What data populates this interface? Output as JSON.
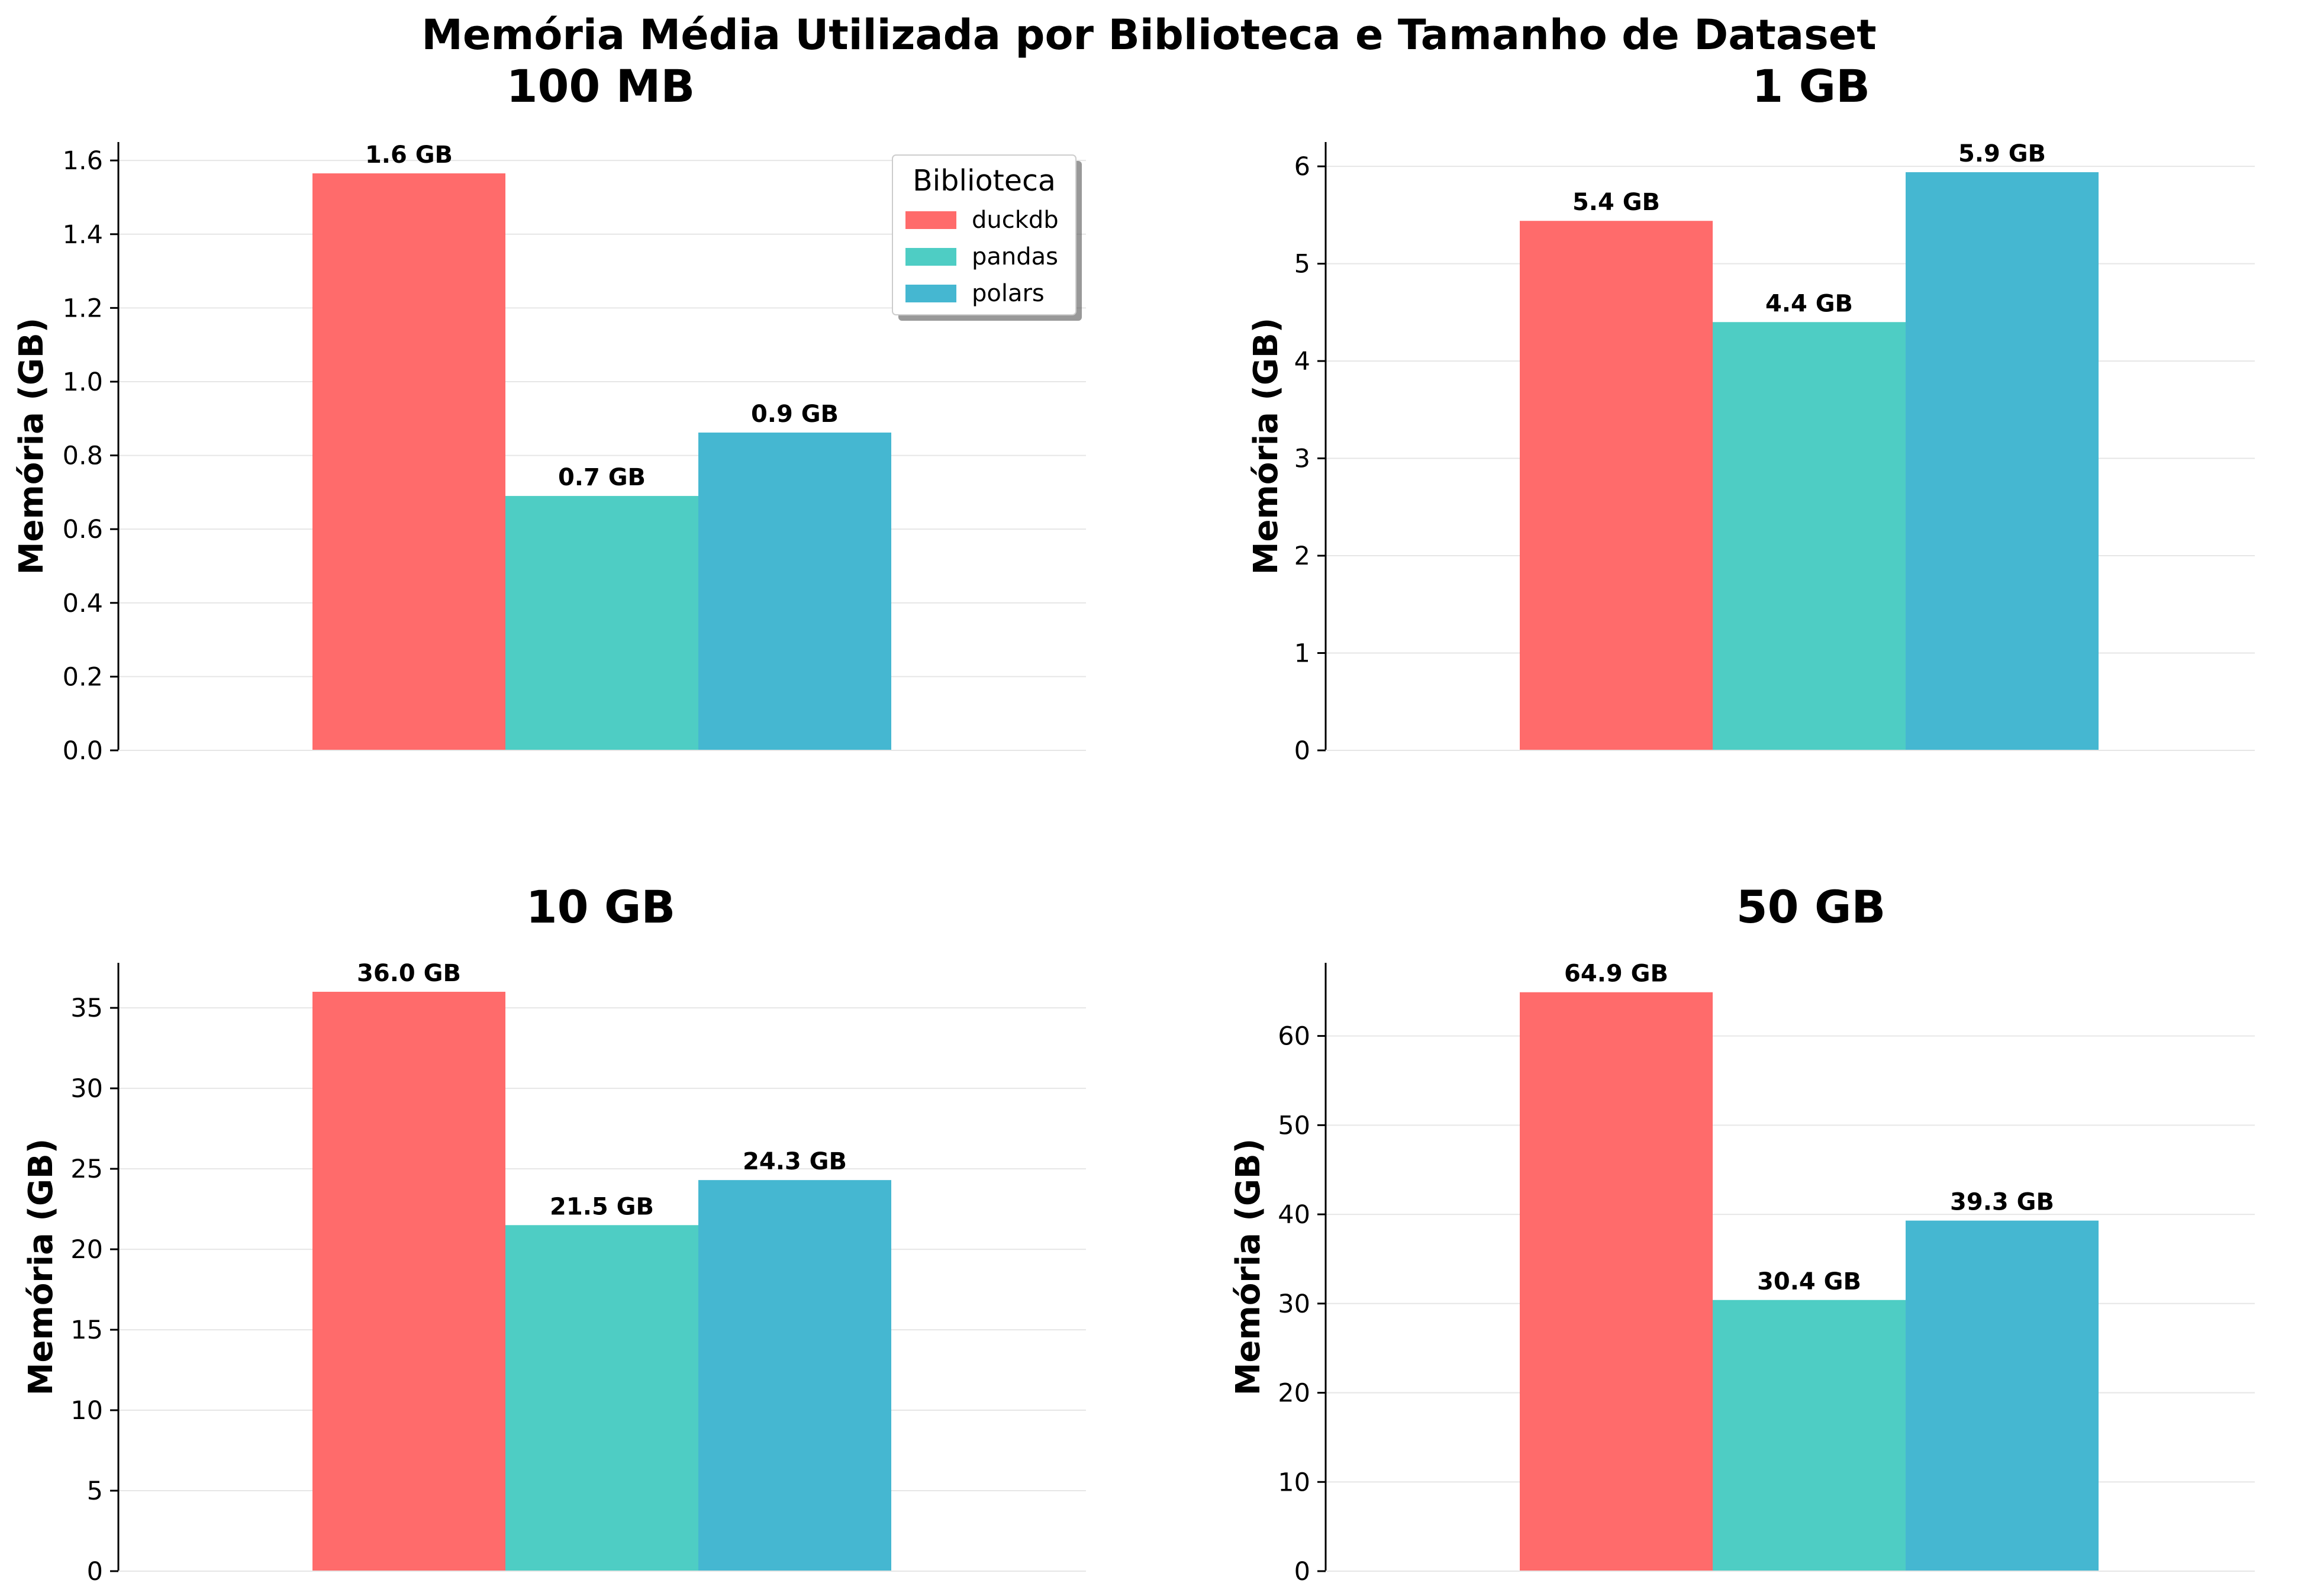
{
  "title": "Memória Média Utilizada por Biblioteca e Tamanho de Dataset",
  "colors": {
    "duckdb": "#ff6b6b",
    "pandas": "#4ecdc4",
    "polars": "#45b7d1",
    "grid": "#e6e6e6",
    "axis": "#000000"
  },
  "legend": {
    "title": "Biblioteca",
    "items": [
      "duckdb",
      "pandas",
      "polars"
    ],
    "placement": "upper-right of first panel"
  },
  "chart_data": [
    {
      "type": "bar",
      "title": "100 MB",
      "ylabel": "Memória (GB)",
      "ylim": [
        0,
        1.65
      ],
      "ticks": [
        0.0,
        0.2,
        0.4,
        0.6,
        0.8,
        1.0,
        1.2,
        1.4,
        1.6
      ],
      "tick_decimals": 1,
      "categories": [
        "duckdb",
        "pandas",
        "polars"
      ],
      "values": [
        1.565,
        0.69,
        0.862
      ],
      "labels": [
        "1.6 GB",
        "0.7 GB",
        "0.9 GB"
      ],
      "grid": true
    },
    {
      "type": "bar",
      "title": "1 GB",
      "ylabel": "Memória (GB)",
      "ylim": [
        0,
        6.25
      ],
      "ticks": [
        0,
        1,
        2,
        3,
        4,
        5,
        6
      ],
      "tick_decimals": 0,
      "categories": [
        "duckdb",
        "pandas",
        "polars"
      ],
      "values": [
        5.44,
        4.4,
        5.94
      ],
      "labels": [
        "5.4 GB",
        "4.4 GB",
        "5.9 GB"
      ],
      "grid": true
    },
    {
      "type": "bar",
      "title": "10 GB",
      "ylabel": "Memória (GB)",
      "ylim": [
        0,
        37.8
      ],
      "ticks": [
        0,
        5,
        10,
        15,
        20,
        25,
        30,
        35
      ],
      "tick_decimals": 0,
      "categories": [
        "duckdb",
        "pandas",
        "polars"
      ],
      "values": [
        36.0,
        21.5,
        24.3
      ],
      "labels": [
        "36.0 GB",
        "21.5 GB",
        "24.3 GB"
      ],
      "grid": true
    },
    {
      "type": "bar",
      "title": "50 GB",
      "ylabel": "Memória (GB)",
      "ylim": [
        0,
        68.2
      ],
      "ticks": [
        0,
        10,
        20,
        30,
        40,
        50,
        60
      ],
      "tick_decimals": 0,
      "categories": [
        "duckdb",
        "pandas",
        "polars"
      ],
      "values": [
        64.9,
        30.4,
        39.3
      ],
      "labels": [
        "64.9 GB",
        "30.4 GB",
        "39.3 GB"
      ],
      "grid": true
    }
  ]
}
